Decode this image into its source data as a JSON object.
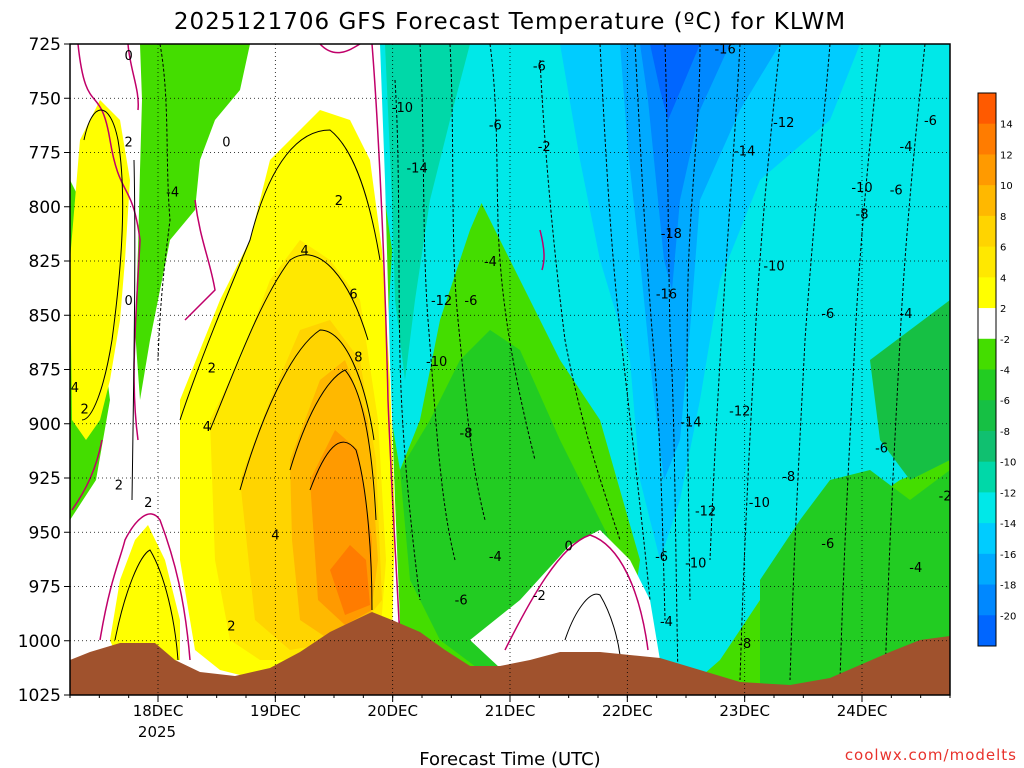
{
  "chart_data": {
    "type": "heatmap",
    "title": "2025121706 GFS Forecast Temperature (ºC) for KLWM",
    "xlabel": "Forecast Time (UTC)",
    "ylabel": "",
    "credit": "coolwx.com/modelts",
    "y_axis": {
      "range": [
        725,
        1025
      ],
      "ticks": [
        "725",
        "750",
        "775",
        "800",
        "825",
        "850",
        "875",
        "900",
        "925",
        "950",
        "975",
        "1000",
        "1025"
      ]
    },
    "x_axis": {
      "range": [
        "17DEC 06Z",
        "24DEC 18Z"
      ],
      "ticks": [
        "18DEC",
        "19DEC",
        "20DEC",
        "21DEC",
        "22DEC",
        "23DEC",
        "24DEC"
      ],
      "year_label": "2025"
    },
    "colorbar": {
      "labels": [
        "14",
        "12",
        "10",
        "8",
        "6",
        "4",
        "2",
        "-2",
        "-4",
        "-6",
        "-8",
        "-10",
        "-12",
        "-14",
        "-16",
        "-18",
        "-20"
      ],
      "colors": [
        "#ff5a00",
        "#ff7c00",
        "#ff9a00",
        "#ffb800",
        "#ffd400",
        "#ffe800",
        "#ffff00",
        "#ffffff",
        "#44dd00",
        "#22cc22",
        "#16c044",
        "#10c070",
        "#00d8a8",
        "#00e8e8",
        "#00ccff",
        "#00aaff",
        "#0088ff",
        "#0066ff"
      ]
    },
    "contour_labels": [
      {
        "text": "0",
        "x": "17DEC 18Z",
        "y": 730
      },
      {
        "text": "2",
        "x": "17DEC 18Z",
        "y": 770
      },
      {
        "text": "0",
        "x": "18DEC 14Z",
        "y": 770
      },
      {
        "text": "-4",
        "x": "18DEC 03Z",
        "y": 793
      },
      {
        "text": "0",
        "x": "17DEC 18Z",
        "y": 843
      },
      {
        "text": "4",
        "x": "17DEC 07Z",
        "y": 883
      },
      {
        "text": "2",
        "x": "17DEC 09Z",
        "y": 893
      },
      {
        "text": "2",
        "x": "18DEC 11Z",
        "y": 874
      },
      {
        "text": "2",
        "x": "17DEC 16Z",
        "y": 928
      },
      {
        "text": "2",
        "x": "17DEC 22Z",
        "y": 936
      },
      {
        "text": "4",
        "x": "18DEC 10Z",
        "y": 901
      },
      {
        "text": "4",
        "x": "19DEC 00Z",
        "y": 951
      },
      {
        "text": "2",
        "x": "18DEC 15Z",
        "y": 993
      },
      {
        "text": "2",
        "x": "19DEC 13Z",
        "y": 797
      },
      {
        "text": "4",
        "x": "19DEC 06Z",
        "y": 820
      },
      {
        "text": "6",
        "x": "19DEC 16Z",
        "y": 840
      },
      {
        "text": "8",
        "x": "19DEC 17Z",
        "y": 869
      },
      {
        "text": "-10",
        "x": "20DEC 02Z",
        "y": 754
      },
      {
        "text": "-14",
        "x": "20DEC 05Z",
        "y": 782
      },
      {
        "text": "-6",
        "x": "21DEC 06Z",
        "y": 735
      },
      {
        "text": "-6",
        "x": "20DEC 21Z",
        "y": 762
      },
      {
        "text": "-2",
        "x": "21DEC 07Z",
        "y": 772
      },
      {
        "text": "-4",
        "x": "20DEC 20Z",
        "y": 825
      },
      {
        "text": "-12",
        "x": "20DEC 10Z",
        "y": 843
      },
      {
        "text": "-6",
        "x": "20DEC 16Z",
        "y": 843
      },
      {
        "text": "-10",
        "x": "20DEC 09Z",
        "y": 871
      },
      {
        "text": "-8",
        "x": "20DEC 15Z",
        "y": 904
      },
      {
        "text": "-4",
        "x": "20DEC 21Z",
        "y": 961
      },
      {
        "text": "-6",
        "x": "20DEC 14Z",
        "y": 981
      },
      {
        "text": "-2",
        "x": "21DEC 06Z",
        "y": 979
      },
      {
        "text": "0",
        "x": "21DEC 12Z",
        "y": 956
      },
      {
        "text": "-16",
        "x": "22DEC 20Z",
        "y": 727
      },
      {
        "text": "-12",
        "x": "23DEC 08Z",
        "y": 761
      },
      {
        "text": "-14",
        "x": "23DEC 00Z",
        "y": 774
      },
      {
        "text": "-18",
        "x": "22DEC 09Z",
        "y": 812
      },
      {
        "text": "-16",
        "x": "22DEC 08Z",
        "y": 840
      },
      {
        "text": "-10",
        "x": "23DEC 06Z",
        "y": 827
      },
      {
        "text": "-10",
        "x": "24DEC 00Z",
        "y": 791
      },
      {
        "text": "-8",
        "x": "24DEC 00Z",
        "y": 803
      },
      {
        "text": "-6",
        "x": "24DEC 07Z",
        "y": 792
      },
      {
        "text": "-4",
        "x": "24DEC 09Z",
        "y": 772
      },
      {
        "text": "-6",
        "x": "24DEC 14Z",
        "y": 760
      },
      {
        "text": "-6",
        "x": "23DEC 17Z",
        "y": 849
      },
      {
        "text": "-4",
        "x": "24DEC 09Z",
        "y": 849
      },
      {
        "text": "-14",
        "x": "22DEC 13Z",
        "y": 899
      },
      {
        "text": "-12",
        "x": "22DEC 23Z",
        "y": 894
      },
      {
        "text": "-8",
        "x": "23DEC 09Z",
        "y": 924
      },
      {
        "text": "-10",
        "x": "23DEC 03Z",
        "y": 936
      },
      {
        "text": "-12",
        "x": "22DEC 16Z",
        "y": 940
      },
      {
        "text": "-6",
        "x": "22DEC 07Z",
        "y": 961
      },
      {
        "text": "-10",
        "x": "22DEC 14Z",
        "y": 964
      },
      {
        "text": "-4",
        "x": "22DEC 08Z",
        "y": 991
      },
      {
        "text": "-8",
        "x": "23DEC 00Z",
        "y": 1001
      },
      {
        "text": "-6",
        "x": "23DEC 17Z",
        "y": 955
      },
      {
        "text": "-6",
        "x": "24DEC 04Z",
        "y": 911
      },
      {
        "text": "-4",
        "x": "24DEC 11Z",
        "y": 966
      },
      {
        "text": "-2",
        "x": "24DEC 17Z",
        "y": 933
      }
    ]
  }
}
